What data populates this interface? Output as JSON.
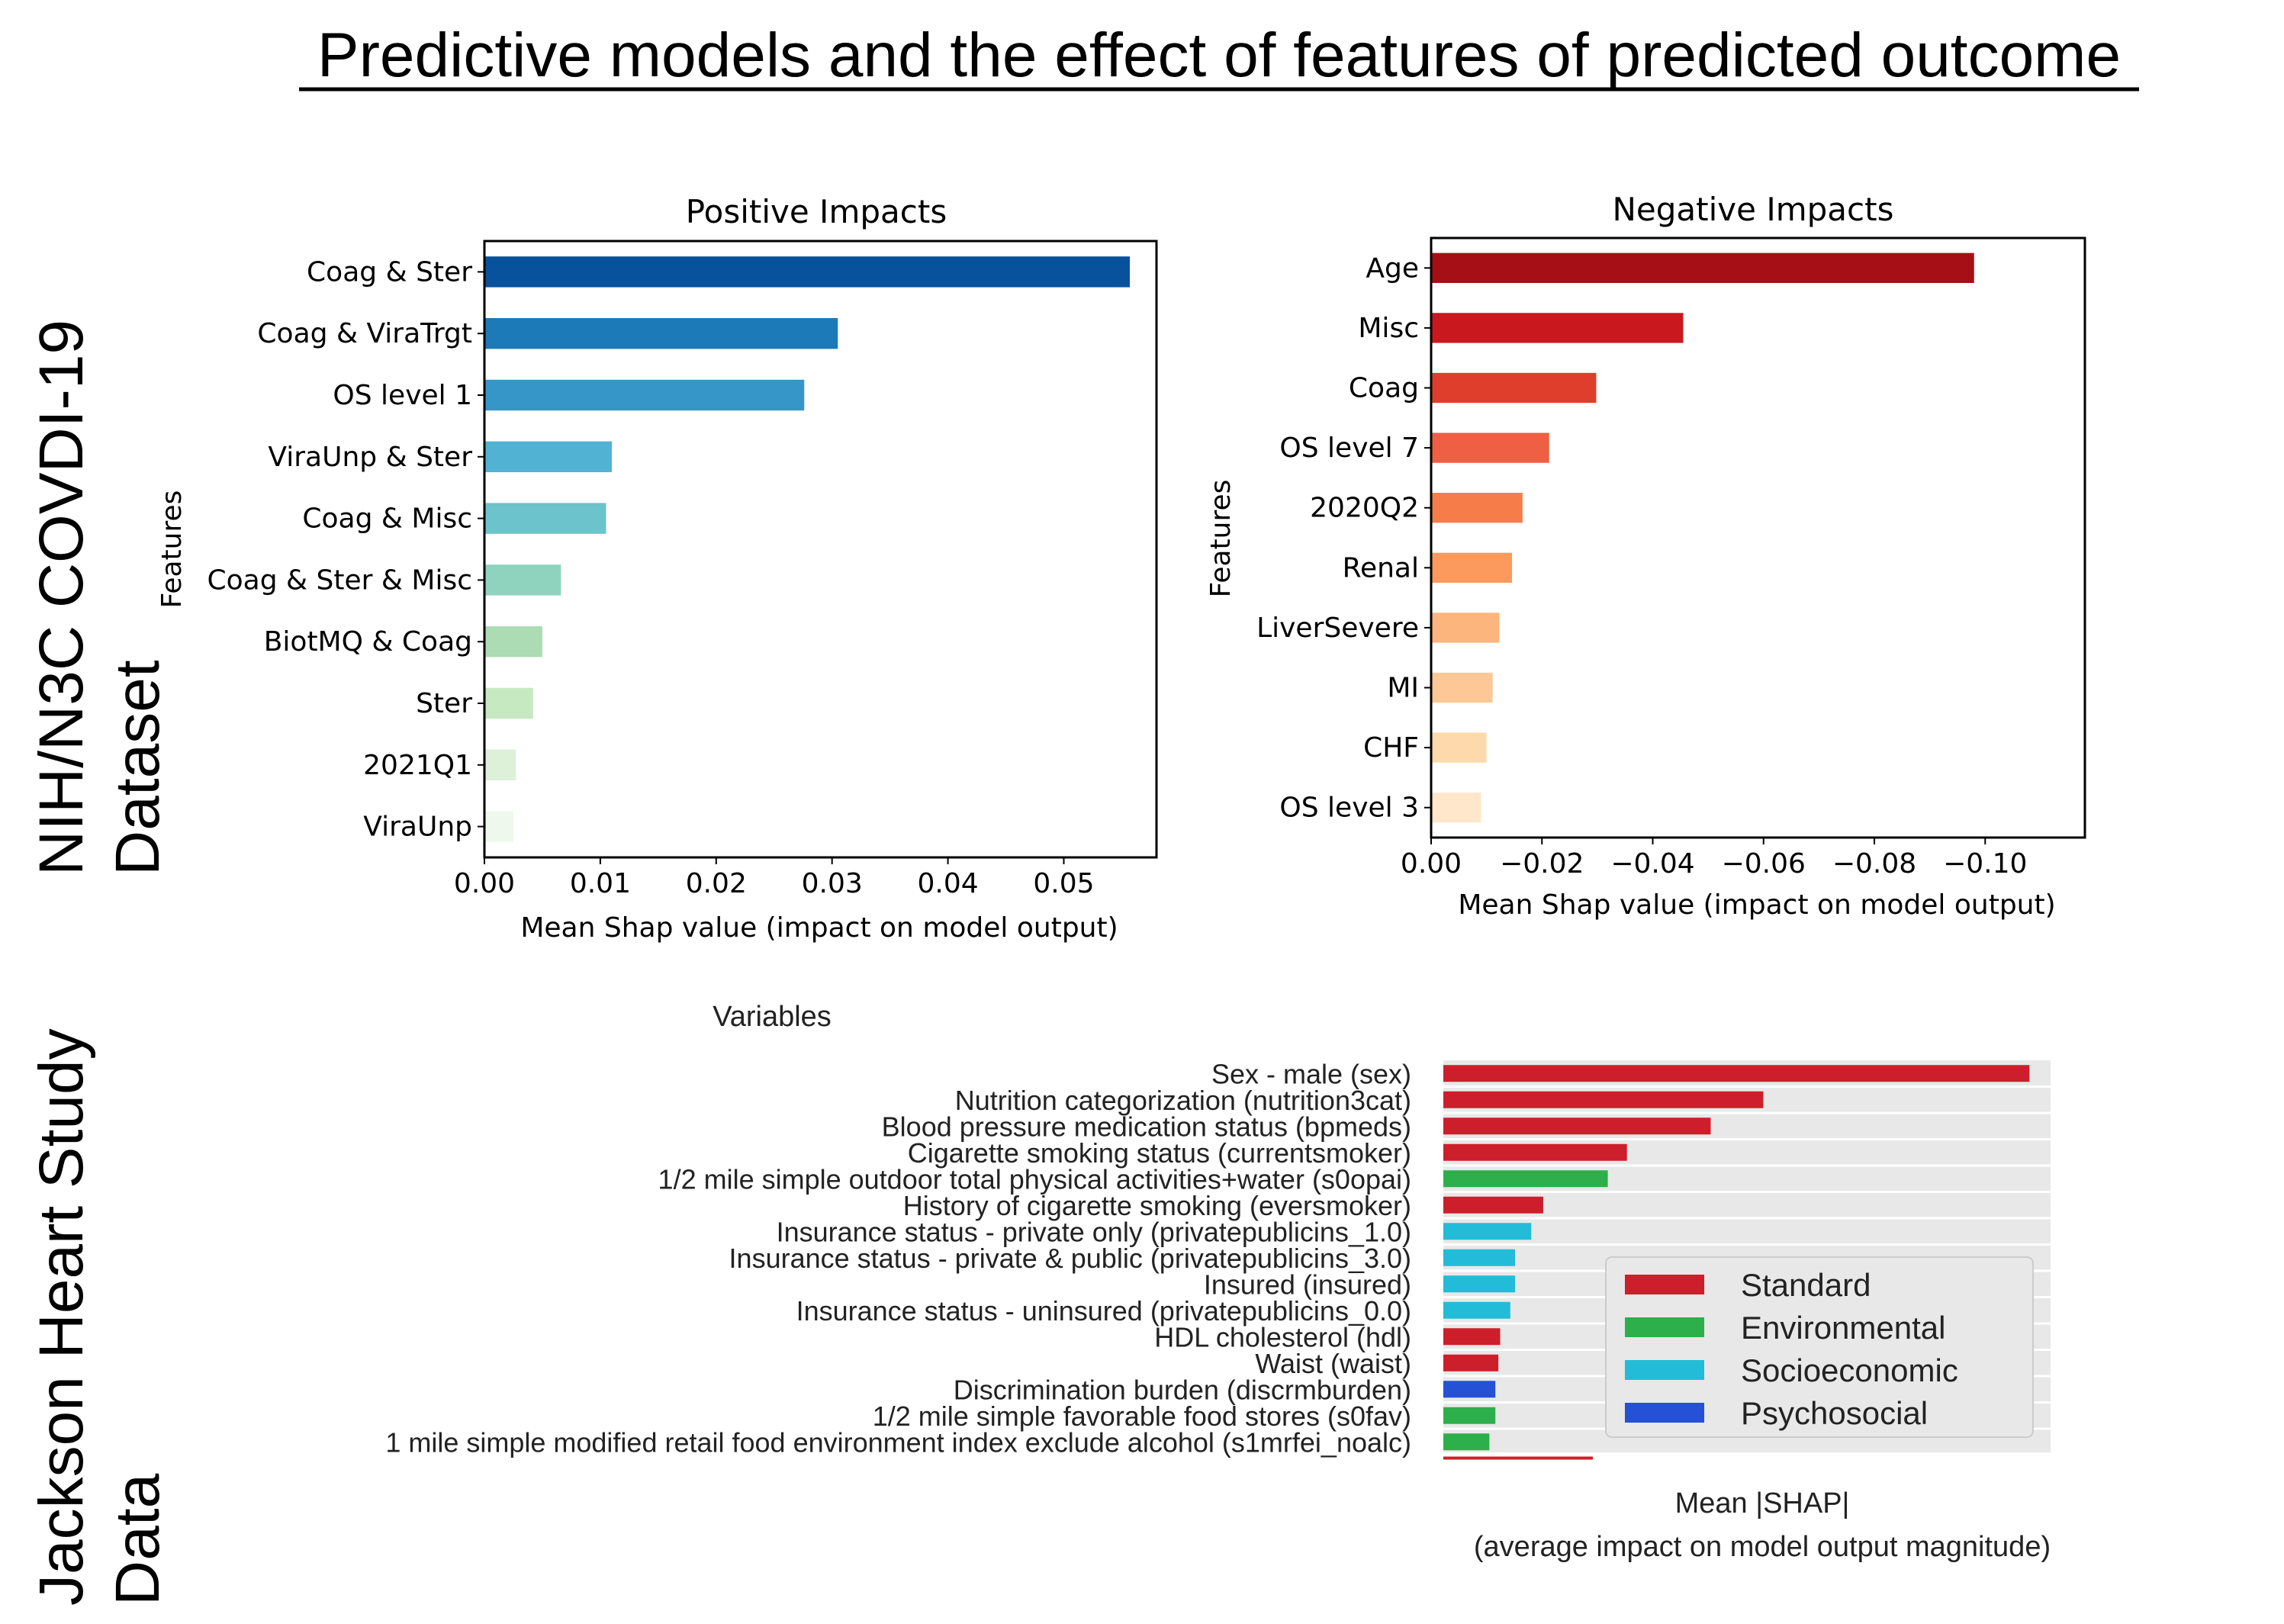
{
  "title": "Predictive models and the effect of features of predicted outcome",
  "side_labels": {
    "top_line1": "NIH/N3C COVDI-19",
    "top_line2": "Dataset",
    "bottom_line1": "Jackson Heart Study",
    "bottom_line2": "Data"
  },
  "chart_data": [
    {
      "type": "bar",
      "orientation": "horizontal",
      "title": "Positive Impacts",
      "xlabel": "Mean Shap value (impact on model output)",
      "ylabel": "Features",
      "xlim": [
        0,
        0.058
      ],
      "xticks": [
        0.0,
        0.01,
        0.02,
        0.03,
        0.04,
        0.05
      ],
      "xtick_labels": [
        "0.00",
        "0.01",
        "0.02",
        "0.03",
        "0.04",
        "0.05"
      ],
      "categories": [
        "Coag & Ster",
        "Coag & ViraTrgt",
        "OS level 1",
        "ViraUnp & Ster",
        "Coag & Misc",
        "Coag & Ster & Misc",
        "BiotMQ & Coag",
        "Ster",
        "2021Q1",
        "ViraUnp"
      ],
      "values": [
        0.0557,
        0.0305,
        0.0276,
        0.011,
        0.0105,
        0.0066,
        0.005,
        0.0042,
        0.0027,
        0.0025
      ],
      "colors": [
        "#08519c",
        "#1c7ab8",
        "#3596c7",
        "#52b2d4",
        "#6cc3cb",
        "#8fd3bf",
        "#abdcb3",
        "#c6e9c1",
        "#dcf1d8",
        "#eef8ec"
      ],
      "grid": false
    },
    {
      "type": "bar",
      "orientation": "horizontal",
      "title": "Negative Impacts",
      "xlabel": "Mean Shap value (impact on model output)",
      "ylabel": "Features",
      "xlim": [
        0,
        -0.118
      ],
      "xticks": [
        0.0,
        -0.02,
        -0.04,
        -0.06,
        -0.08,
        -0.1
      ],
      "xtick_labels": [
        "0.00",
        "−0.02",
        "−0.04",
        "−0.06",
        "−0.08",
        "−0.10"
      ],
      "categories": [
        "Age",
        "Misc",
        "Coag",
        "OS level 7",
        "2020Q2",
        "Renal",
        "LiverSevere ",
        "MI",
        "CHF",
        "OS level 3"
      ],
      "values": [
        -0.098,
        -0.0455,
        -0.0298,
        -0.0213,
        -0.0165,
        -0.0146,
        -0.0123,
        -0.0111,
        -0.01,
        -0.009
      ],
      "colors": [
        "#a50f15",
        "#c9181e",
        "#e03e2c",
        "#ee5f43",
        "#f67c4a",
        "#fb9a5c",
        "#fdb57e",
        "#fdc896",
        "#fed9ab",
        "#fee7ca"
      ],
      "grid": false
    },
    {
      "type": "bar",
      "orientation": "horizontal",
      "title": "Variables",
      "xlabel_line1": "Mean |SHAP|",
      "xlabel_line2": "(average impact on model output magnitude)",
      "xlim": [
        0,
        1
      ],
      "categories": [
        "Sex - male (sex)",
        "Nutrition categorization (nutrition3cat)",
        "Blood pressure medication status (bpmeds)",
        "Cigarette smoking status (currentsmoker)",
        "1/2 mile simple outdoor total physical activities+water (s0opai)",
        "History of cigarette smoking (eversmoker)",
        "Insurance status - private only (privatepublicins_1.0)",
        "Insurance status - private & public (privatepublicins_3.0)",
        "Insured (insured)",
        "Insurance status - uninsured (privatepublicins_0.0)",
        "HDL cholesterol (hdl)",
        "Waist (waist)",
        "Discrimination burden (discrmburden)",
        "1/2 mile simple favorable food stores (s0fav)",
        "1 mile simple modified retail food environment index exclude alcohol (s1mrfei_noalc)"
      ],
      "values": [
        0.98,
        0.535,
        0.447,
        0.307,
        0.275,
        0.167,
        0.147,
        0.12,
        0.12,
        0.112,
        0.095,
        0.092,
        0.087,
        0.087,
        0.077
      ],
      "groups": [
        "Standard",
        "Standard",
        "Standard",
        "Standard",
        "Environmental",
        "Standard",
        "Socioeconomic",
        "Socioeconomic",
        "Socioeconomic",
        "Socioeconomic",
        "Standard",
        "Standard",
        "Psychosocial",
        "Environmental",
        "Environmental"
      ],
      "extra_partial_bar_value": 0.25,
      "legend": {
        "placement": "lower-right",
        "entries": [
          {
            "name": "Standard",
            "color": "#cc1f2b"
          },
          {
            "name": "Environmental",
            "color": "#2db04b"
          },
          {
            "name": "Socioeconomic",
            "color": "#22bcd8"
          },
          {
            "name": "Psychosocial",
            "color": "#2451d6"
          }
        ]
      },
      "background": "#e8e8e8",
      "grid": true
    }
  ]
}
